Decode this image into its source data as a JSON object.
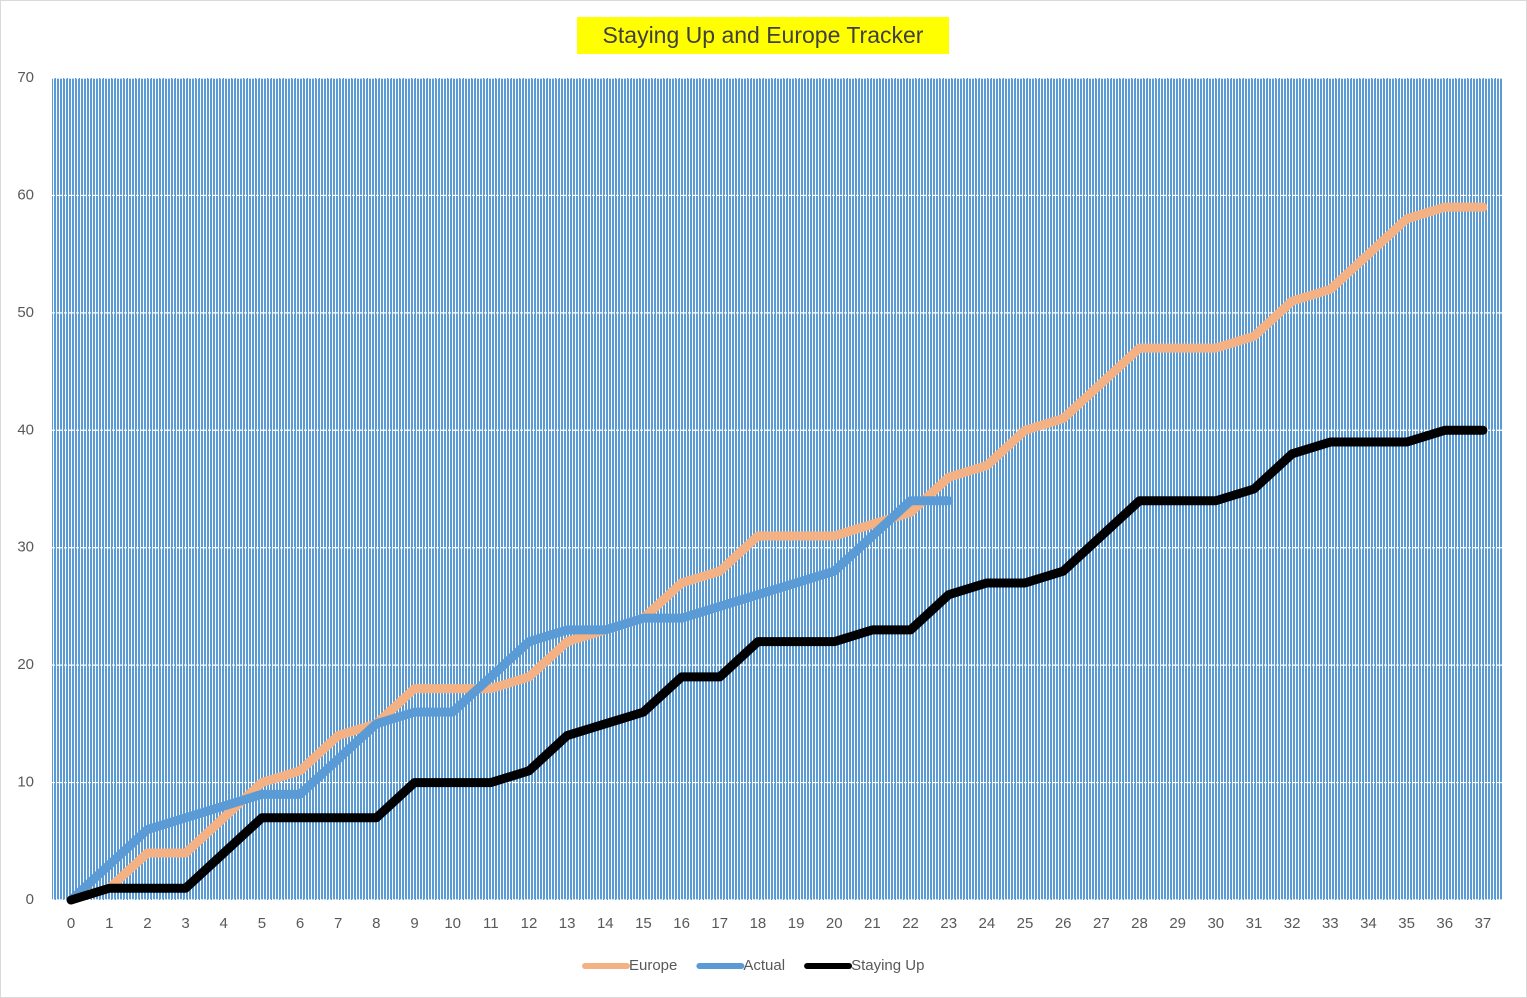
{
  "chart_data": {
    "type": "line",
    "title": "Staying Up and Europe Tracker",
    "categories": [
      0,
      1,
      2,
      3,
      4,
      5,
      6,
      7,
      8,
      9,
      10,
      11,
      12,
      13,
      14,
      15,
      16,
      17,
      18,
      19,
      20,
      21,
      22,
      23,
      24,
      25,
      26,
      27,
      28,
      29,
      30,
      31,
      32,
      33,
      34,
      35,
      36,
      37
    ],
    "series": [
      {
        "name": "Europe",
        "color": "#f4b183",
        "values": [
          0,
          1,
          4,
          4,
          7,
          10,
          11,
          14,
          15,
          18,
          18,
          18,
          19,
          22,
          23,
          24,
          27,
          28,
          31,
          31,
          31,
          32,
          33,
          36,
          37,
          40,
          41,
          44,
          47,
          47,
          47,
          48,
          51,
          52,
          55,
          58,
          59,
          59
        ]
      },
      {
        "name": "Actual",
        "color": "#5b9bd5",
        "values": [
          0,
          3,
          6,
          7,
          8,
          9,
          9,
          12,
          15,
          16,
          16,
          19,
          22,
          23,
          23,
          24,
          24,
          25,
          26,
          27,
          28,
          31,
          34,
          34,
          null,
          null,
          null,
          null,
          null,
          null,
          null,
          null,
          null,
          null,
          null,
          null,
          null,
          null
        ]
      },
      {
        "name": "Staying Up",
        "color": "#000000",
        "values": [
          0,
          1,
          1,
          1,
          4,
          7,
          7,
          7,
          7,
          10,
          10,
          10,
          11,
          14,
          15,
          16,
          19,
          19,
          22,
          22,
          22,
          23,
          23,
          26,
          27,
          27,
          28,
          31,
          34,
          34,
          34,
          35,
          38,
          39,
          39,
          39,
          40,
          40
        ]
      }
    ],
    "ylim": [
      0,
      70
    ],
    "yticks": [
      0,
      10,
      20,
      30,
      40,
      50,
      60,
      70
    ],
    "grid": true,
    "legend": "bottom"
  }
}
